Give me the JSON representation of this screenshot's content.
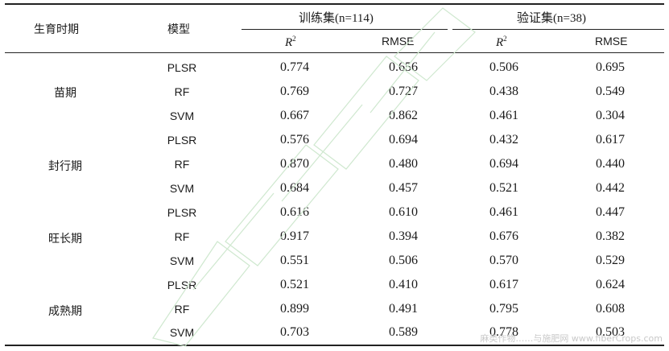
{
  "header": {
    "stage": "生育时期",
    "model": "模型",
    "train_group": "训练集(n=114)",
    "valid_group": "验证集(n=38)",
    "r2_base": "R",
    "r2_exp": "2",
    "rmse": "RMSE"
  },
  "stages": [
    {
      "name": "苗期",
      "rows": [
        {
          "model": "PLSR",
          "train_r2": "0.774",
          "train_rmse": "0.656",
          "valid_r2": "0.506",
          "valid_rmse": "0.695"
        },
        {
          "model": "RF",
          "train_r2": "0.769",
          "train_rmse": "0.727",
          "valid_r2": "0.438",
          "valid_rmse": "0.549"
        },
        {
          "model": "SVM",
          "train_r2": "0.667",
          "train_rmse": "0.862",
          "valid_r2": "0.461",
          "valid_rmse": "0.304"
        }
      ]
    },
    {
      "name": "封行期",
      "rows": [
        {
          "model": "PLSR",
          "train_r2": "0.576",
          "train_rmse": "0.694",
          "valid_r2": "0.432",
          "valid_rmse": "0.617"
        },
        {
          "model": "RF",
          "train_r2": "0.870",
          "train_rmse": "0.480",
          "valid_r2": "0.694",
          "valid_rmse": "0.440"
        },
        {
          "model": "SVM",
          "train_r2": "0.684",
          "train_rmse": "0.457",
          "valid_r2": "0.521",
          "valid_rmse": "0.442"
        }
      ]
    },
    {
      "name": "旺长期",
      "rows": [
        {
          "model": "PLSR",
          "train_r2": "0.616",
          "train_rmse": "0.610",
          "valid_r2": "0.461",
          "valid_rmse": "0.447"
        },
        {
          "model": "RF",
          "train_r2": "0.917",
          "train_rmse": "0.394",
          "valid_r2": "0.676",
          "valid_rmse": "0.382"
        },
        {
          "model": "SVM",
          "train_r2": "0.551",
          "train_rmse": "0.506",
          "valid_r2": "0.570",
          "valid_rmse": "0.529"
        }
      ]
    },
    {
      "name": "成熟期",
      "rows": [
        {
          "model": "PLSR",
          "train_r2": "0.521",
          "train_rmse": "0.410",
          "valid_r2": "0.617",
          "valid_rmse": "0.624"
        },
        {
          "model": "RF",
          "train_r2": "0.899",
          "train_rmse": "0.491",
          "valid_r2": "0.795",
          "valid_rmse": "0.608"
        },
        {
          "model": "SVM",
          "train_r2": "0.703",
          "train_rmse": "0.589",
          "valid_r2": "0.778",
          "valid_rmse": "0.503"
        }
      ]
    }
  ],
  "watermark": {
    "text": "麻类作物……与施肥网 www.fiberCrops.com",
    "icon": "journal-stamp-watermark"
  }
}
